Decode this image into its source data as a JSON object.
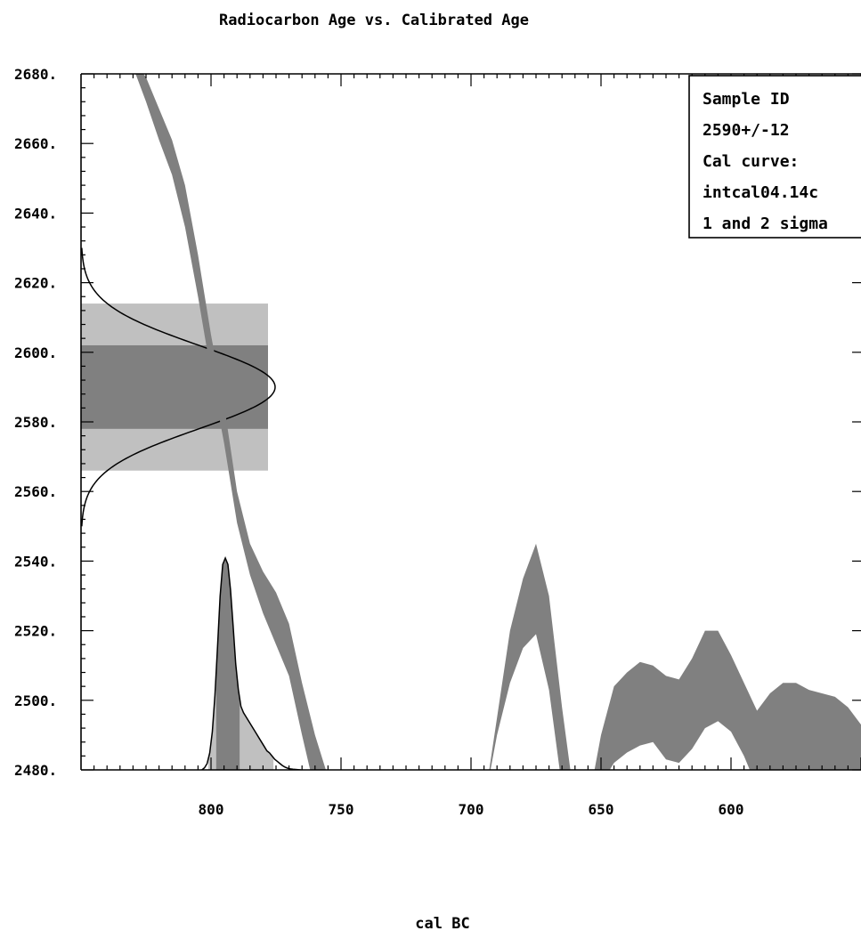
{
  "chart_data": {
    "type": "area",
    "title": "Radiocarbon Age vs. Calibrated Age",
    "xlabel": "cal BC",
    "ylabel": "",
    "xlim": [
      850,
      550
    ],
    "ylim": [
      2480,
      2680
    ],
    "x_ticks": [
      800,
      750,
      700,
      650,
      600
    ],
    "y_ticks": [
      2680,
      2660,
      2640,
      2620,
      2600,
      2580,
      2560,
      2540,
      2520,
      2500,
      2480
    ],
    "x_tick_labels": [
      "800",
      "750",
      "700",
      "650",
      "600"
    ],
    "y_tick_labels": [
      "2680.",
      "2660.",
      "2640.",
      "2620.",
      "2600.",
      "2580.",
      "2560.",
      "2540.",
      "2520.",
      "2500.",
      "2480."
    ],
    "legend": {
      "placement": "top-right",
      "lines": [
        "Sample ID",
        "2590+/-12",
        "Cal curve:",
        "intcal04.14c",
        "1 and 2 sigma"
      ]
    },
    "sample": {
      "age": 2590,
      "error": 12
    },
    "sigma_bands": {
      "one_sigma": [
        2578,
        2602
      ],
      "two_sigma": [
        2566,
        2614
      ]
    },
    "calibration_band": {
      "color": "#808080",
      "segments": [
        {
          "x": [
            829,
            825,
            820,
            815,
            810,
            805,
            800,
            795,
            790,
            785,
            780,
            775,
            770,
            765,
            760,
            755,
            750,
            745,
            740,
            735,
            730
          ],
          "upper": [
            2683,
            2679,
            2670,
            2661,
            2648,
            2628,
            2605,
            2585,
            2560,
            2545,
            2537,
            2531,
            2522,
            2505,
            2490,
            2478,
            2466,
            2462,
            2458,
            2454,
            2450
          ],
          "lower": [
            2680,
            2672,
            2661,
            2651,
            2636,
            2616,
            2594,
            2574,
            2551,
            2536,
            2525,
            2516,
            2507,
            2490,
            2474,
            2462,
            2450,
            2446,
            2442,
            2438,
            2434
          ]
        },
        {
          "x": [
            695,
            690,
            685,
            680,
            675,
            670,
            665,
            660
          ],
          "upper": [
            2470,
            2495,
            2520,
            2535,
            2545,
            2530,
            2498,
            2470
          ],
          "lower": [
            2470,
            2490,
            2505,
            2515,
            2519,
            2503,
            2475,
            2470
          ]
        },
        {
          "x": [
            655,
            650,
            645,
            640,
            635,
            630,
            625,
            620,
            615,
            610,
            605,
            600,
            595,
            590,
            585,
            580,
            575,
            570,
            565,
            560,
            555,
            550
          ],
          "upper": [
            2470,
            2490,
            2504,
            2508,
            2511,
            2510,
            2507,
            2506,
            2512,
            2520,
            2520,
            2513,
            2505,
            2497,
            2502,
            2505,
            2505,
            2503,
            2502,
            2501,
            2498,
            2493
          ],
          "lower": [
            2470,
            2476,
            2482,
            2485,
            2487,
            2488,
            2483,
            2482,
            2486,
            2492,
            2494,
            2491,
            2484,
            2475,
            2472,
            2473,
            2474,
            2476,
            2477,
            2478,
            2479,
            2480
          ]
        }
      ]
    },
    "probability_curve": {
      "x": [
        803.5,
        802.5,
        801.5,
        800.5,
        799.5,
        798.5,
        797.5,
        796.5,
        795.5,
        794.5,
        793.5,
        792.5,
        791.5,
        790.5,
        789.5,
        788.5,
        787.5,
        786.5,
        785.5,
        784.5,
        783.5,
        782.5,
        781.5,
        780.5,
        779.5,
        778.5,
        777.5,
        776.5,
        775.5,
        774.5,
        773.5,
        772.5,
        771.5,
        770.5,
        769.5,
        768.5,
        767.5,
        766.5,
        765.5
      ],
      "density": [
        0.0,
        0.01,
        0.03,
        0.08,
        0.18,
        0.35,
        0.58,
        0.82,
        0.97,
        1.0,
        0.97,
        0.85,
        0.68,
        0.5,
        0.38,
        0.3,
        0.27,
        0.25,
        0.23,
        0.21,
        0.19,
        0.17,
        0.15,
        0.13,
        0.11,
        0.09,
        0.08,
        0.065,
        0.05,
        0.04,
        0.03,
        0.02,
        0.013,
        0.008,
        0.005,
        0.003,
        0.002,
        0.001,
        0.0
      ],
      "one_sigma_range": [
        798,
        789
      ],
      "two_sigma_range": [
        801,
        776
      ]
    }
  }
}
